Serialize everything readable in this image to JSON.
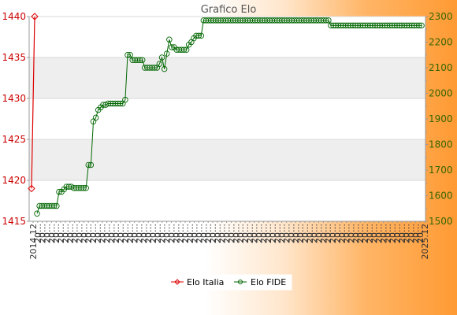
{
  "chart_data": {
    "type": "line",
    "title": "Grafico Elo",
    "grid": true,
    "legend_position": "bottom",
    "left_axis": {
      "series": "Elo Italia",
      "ylim": [
        1415,
        1440
      ],
      "ticks": [
        1415,
        1420,
        1425,
        1430,
        1435,
        1440
      ],
      "color": "#cc0000"
    },
    "right_axis": {
      "series": "Elo FIDE",
      "ylim": [
        1500,
        2300
      ],
      "ticks": [
        1500,
        1600,
        1700,
        1800,
        1900,
        2000,
        2100,
        2200,
        2300
      ],
      "color": "#336600"
    },
    "series": [
      {
        "name": "Elo Italia",
        "axis": "left",
        "color": "#dd0000",
        "values": [
          1419,
          1440
        ]
      },
      {
        "name": "Elo FIDE",
        "axis": "right",
        "color": "#006600",
        "values": [
          1530,
          1560,
          1560,
          1560,
          1560,
          1560,
          1560,
          1560,
          1560,
          1615,
          1615,
          1625,
          1635,
          1635,
          1635,
          1630,
          1630,
          1630,
          1630,
          1630,
          1630,
          1720,
          1720,
          1890,
          1905,
          1935,
          1945,
          1955,
          1955,
          1960,
          1960,
          1960,
          1960,
          1960,
          1960,
          1960,
          1975,
          2150,
          2150,
          2130,
          2130,
          2130,
          2130,
          2130,
          2100,
          2100,
          2100,
          2100,
          2100,
          2100,
          2115,
          2140,
          2095,
          2155,
          2210,
          2180,
          2180,
          2170,
          2170,
          2170,
          2170,
          2170,
          2190,
          2200,
          2215,
          2225,
          2225,
          2225,
          2285,
          2285,
          2285,
          2285,
          2285,
          2285,
          2285,
          2285,
          2285,
          2285,
          2285,
          2285,
          2285,
          2285,
          2285,
          2285,
          2285,
          2285,
          2285,
          2285,
          2285,
          2285,
          2285,
          2285,
          2285,
          2285,
          2285,
          2285,
          2285,
          2285,
          2285,
          2285,
          2285,
          2285,
          2285,
          2285,
          2285,
          2285,
          2285,
          2285,
          2285,
          2285,
          2285,
          2285,
          2285,
          2285,
          2285,
          2285,
          2285,
          2285,
          2285,
          2285,
          2265,
          2265,
          2265,
          2265,
          2265,
          2265,
          2265,
          2265,
          2265,
          2265,
          2265,
          2265,
          2265,
          2265,
          2265,
          2265,
          2265,
          2265,
          2265,
          2265,
          2265,
          2265,
          2265,
          2265,
          2265,
          2265,
          2265,
          2265,
          2265,
          2265,
          2265,
          2265,
          2265,
          2265,
          2265,
          2265,
          2265,
          2265
        ]
      }
    ],
    "x_tick_first": "2014.12",
    "x_tick_last": "2025.12",
    "x_tick_placeholder": "20…"
  }
}
